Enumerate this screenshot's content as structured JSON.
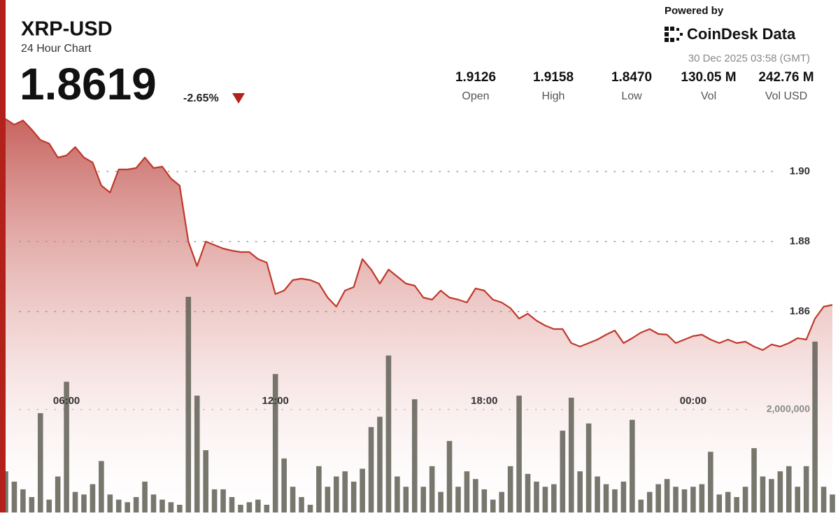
{
  "header": {
    "symbol": "XRP-USD",
    "subtitle": "24 Hour Chart",
    "price": "1.8619",
    "change": "-2.65%",
    "powered_by": "Powered by",
    "brand": "CoinDesk Data",
    "timestamp": "30 Dec 2025 03:58 (GMT)"
  },
  "stats": [
    {
      "value": "1.9126",
      "label": "Open"
    },
    {
      "value": "1.9158",
      "label": "High"
    },
    {
      "value": "1.8470",
      "label": "Low"
    },
    {
      "value": "130.05 M",
      "label": "Vol"
    },
    {
      "value": "242.76 M",
      "label": "Vol USD"
    }
  ],
  "chart_data": {
    "type": "line",
    "categories": [
      null,
      null,
      null,
      null,
      null,
      null,
      null,
      "06:00",
      null,
      null,
      null,
      null,
      null,
      null,
      null,
      null,
      null,
      null,
      null,
      null,
      null,
      null,
      null,
      null,
      null,
      null,
      null,
      null,
      null,
      null,
      null,
      "12:00",
      null,
      null,
      null,
      null,
      null,
      null,
      null,
      null,
      null,
      null,
      null,
      null,
      null,
      null,
      null,
      null,
      null,
      null,
      null,
      null,
      null,
      null,
      null,
      "18:00",
      null,
      null,
      null,
      null,
      null,
      null,
      null,
      null,
      null,
      null,
      null,
      null,
      null,
      null,
      null,
      null,
      null,
      null,
      null,
      null,
      null,
      null,
      null,
      "00:00",
      null,
      null,
      null,
      null,
      null,
      null,
      null,
      null,
      null,
      null,
      null,
      null,
      null,
      null,
      null,
      null
    ],
    "series": [
      {
        "name": "Price",
        "type": "line",
        "color": "#c0392b",
        "values": [
          1.915,
          1.9134,
          1.9146,
          1.912,
          1.909,
          1.908,
          1.904,
          1.9046,
          1.907,
          1.904,
          1.9026,
          1.896,
          1.894,
          1.9006,
          1.9006,
          1.901,
          1.904,
          1.901,
          1.9014,
          1.898,
          1.896,
          1.88,
          1.873,
          1.88,
          1.879,
          1.878,
          1.8774,
          1.877,
          1.877,
          1.875,
          1.874,
          1.865,
          1.866,
          1.869,
          1.8694,
          1.869,
          1.868,
          1.864,
          1.8614,
          1.866,
          1.867,
          1.875,
          1.872,
          1.868,
          1.872,
          1.87,
          1.868,
          1.8674,
          1.864,
          1.8634,
          1.866,
          1.864,
          1.8634,
          1.8626,
          1.8666,
          1.866,
          1.8634,
          1.8626,
          1.861,
          1.858,
          1.8594,
          1.8574,
          1.856,
          1.855,
          1.855,
          1.851,
          1.85,
          1.851,
          1.852,
          1.8534,
          1.8546,
          1.851,
          1.8524,
          1.854,
          1.855,
          1.8536,
          1.8534,
          1.851,
          1.852,
          1.853,
          1.8534,
          1.852,
          1.851,
          1.852,
          1.851,
          1.8514,
          1.85,
          1.849,
          1.8506,
          1.85,
          1.851,
          1.8524,
          1.852,
          1.858,
          1.8614,
          1.8619
        ]
      },
      {
        "name": "Volume",
        "type": "bar",
        "axis": "y2",
        "color": "#5f5f55",
        "values": [
          800000,
          600000,
          450000,
          300000,
          1930000,
          250000,
          700000,
          2540000,
          400000,
          350000,
          550000,
          1000000,
          350000,
          250000,
          200000,
          300000,
          600000,
          350000,
          250000,
          200000,
          150000,
          4190000,
          2270000,
          1210000,
          450000,
          450000,
          300000,
          150000,
          200000,
          250000,
          150000,
          2690000,
          1050000,
          500000,
          300000,
          150000,
          900000,
          500000,
          700000,
          800000,
          600000,
          850000,
          1660000,
          1860000,
          3050000,
          700000,
          500000,
          2200000,
          500000,
          900000,
          400000,
          1390000,
          500000,
          800000,
          650000,
          450000,
          250000,
          400000,
          900000,
          2270000,
          750000,
          600000,
          500000,
          550000,
          1590000,
          2230000,
          800000,
          1730000,
          700000,
          550000,
          450000,
          600000,
          1800000,
          250000,
          400000,
          550000,
          650000,
          500000,
          450000,
          500000,
          550000,
          1180000,
          350000,
          400000,
          300000,
          500000,
          1250000,
          700000,
          650000,
          800000,
          900000,
          500000,
          900000,
          3320000,
          500000,
          350000
        ]
      }
    ],
    "ylim": [
      1.8026,
      1.917
    ],
    "yticks": [
      1.86,
      1.88,
      {
        "value": 1.9,
        "label": "1.90"
      }
    ],
    "y2lim": [
      0,
      7780000
    ],
    "y2ticks": [
      {
        "value": 2000000,
        "label": "2,000,000"
      }
    ],
    "grid": true
  }
}
